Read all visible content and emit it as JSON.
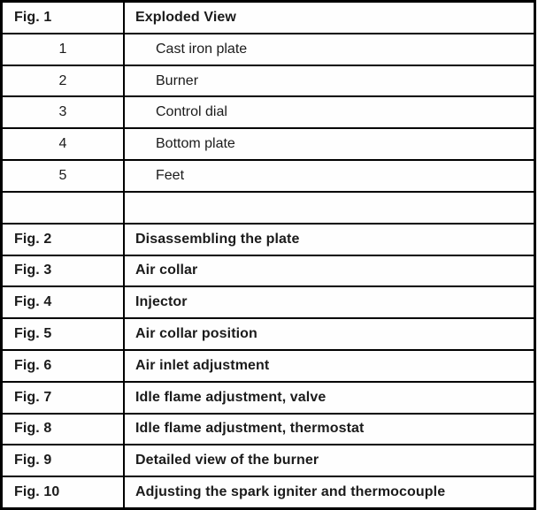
{
  "table": {
    "rows": [
      {
        "style": "header",
        "col1": "Fig. 1",
        "col2": "Exploded View"
      },
      {
        "style": "item",
        "col1": "1",
        "col2": "Cast iron plate"
      },
      {
        "style": "item",
        "col1": "2",
        "col2": "Burner"
      },
      {
        "style": "item",
        "col1": "3",
        "col2": "Control dial"
      },
      {
        "style": "item",
        "col1": "4",
        "col2": "Bottom plate"
      },
      {
        "style": "item",
        "col1": "5",
        "col2": "Feet"
      },
      {
        "style": "empty",
        "col1": "",
        "col2": ""
      },
      {
        "style": "fig",
        "col1": "Fig. 2",
        "col2": "Disassembling the plate"
      },
      {
        "style": "fig",
        "col1": "Fig. 3",
        "col2": "Air collar"
      },
      {
        "style": "fig",
        "col1": "Fig. 4",
        "col2": "Injector"
      },
      {
        "style": "fig",
        "col1": "Fig. 5",
        "col2": "Air collar position"
      },
      {
        "style": "fig",
        "col1": "Fig. 6",
        "col2": "Air inlet adjustment"
      },
      {
        "style": "fig",
        "col1": "Fig. 7",
        "col2": "Idle flame adjustment, valve"
      },
      {
        "style": "fig",
        "col1": "Fig. 8",
        "col2": "Idle flame adjustment, thermostat"
      },
      {
        "style": "fig",
        "col1": "Fig. 9",
        "col2": "Detailed view of the burner"
      },
      {
        "style": "fig",
        "col1": "Fig. 10",
        "col2": "Adjusting the spark igniter and thermocouple"
      }
    ]
  },
  "colors": {
    "border": "#000000",
    "text": "#1b1b1b",
    "background": "#ffffff"
  }
}
